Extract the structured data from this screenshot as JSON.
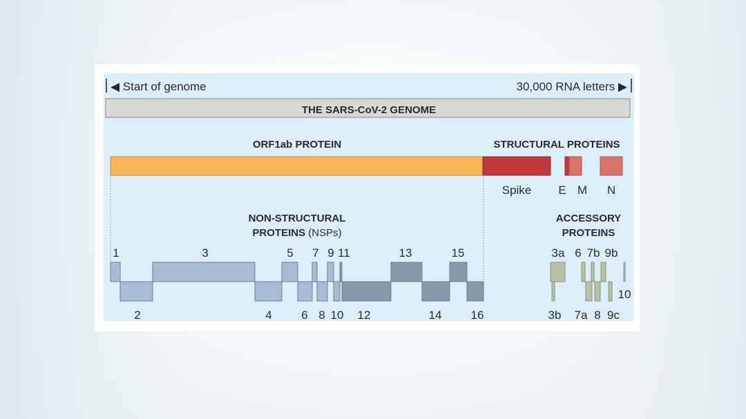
{
  "header": {
    "start_label": "◀ Start of genome",
    "end_label": "30,000 RNA letters ▶"
  },
  "genome": {
    "title": "THE SARS-CoV-2 GENOME"
  },
  "orf1ab": {
    "title": "ORF1ab PROTEIN"
  },
  "structural": {
    "title": "STRUCTURAL PROTEINS",
    "labels": [
      "Spike",
      "E",
      "M",
      "N"
    ]
  },
  "nsp": {
    "title_line1": "NON-STRUCTURAL",
    "title_line2_bold": "PROTEINS",
    "title_line2_normal": " (NSPs)",
    "top_labels": [
      "1",
      "3",
      "5",
      "7",
      "9",
      "11",
      "13",
      "15"
    ],
    "bottom_labels": [
      "2",
      "4",
      "6",
      "8",
      "10",
      "12",
      "14",
      "16"
    ]
  },
  "accessory": {
    "title_line1": "ACCESSORY",
    "title_line2": "PROTEINS",
    "top_labels": [
      "3a",
      "6",
      "7b",
      "9b",
      "10"
    ],
    "bottom_labels": [
      "3b",
      "7a",
      "8",
      "9c"
    ]
  },
  "colors": {
    "orf1ab": "#f8b656",
    "spike": "#c0393c",
    "membrane": "#d9736a",
    "nsp_light": "#a7bdd4",
    "nsp_dark": "#8699aa",
    "accessory": "#b7c2a4"
  }
}
